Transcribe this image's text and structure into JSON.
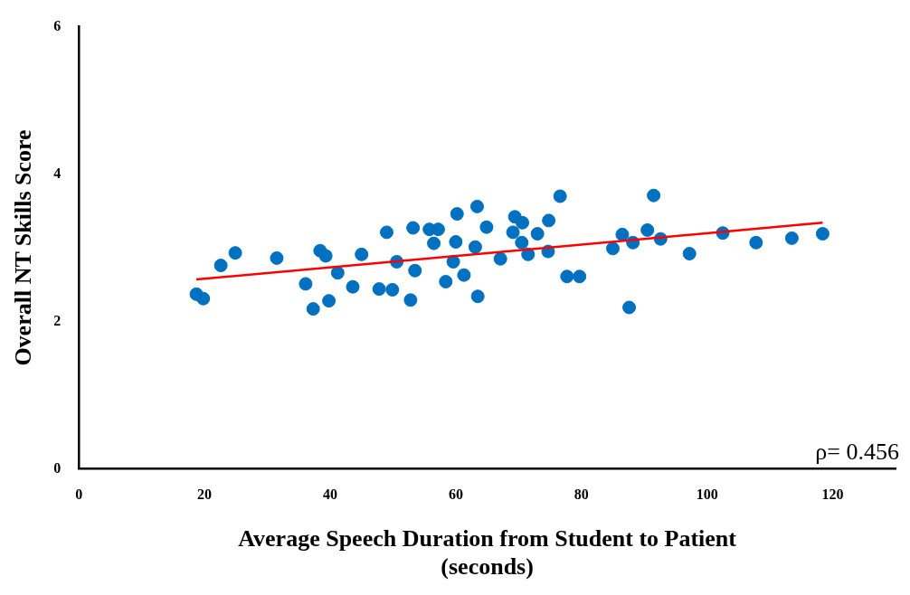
{
  "chart_data": {
    "type": "scatter",
    "xlabel": "Average Speech Duration from Student to Patient\n(seconds)",
    "ylabel": "Overall NT Skills Score",
    "xlim": [
      0,
      130
    ],
    "xticks": [
      0,
      20,
      40,
      60,
      80,
      100,
      120
    ],
    "ylim": [
      0,
      6
    ],
    "yticks": [
      0,
      2,
      4,
      6
    ],
    "grid": false,
    "legend": false,
    "annotations": [
      "ρ= 0.456"
    ],
    "series": [
      {
        "type": "scatter",
        "marker": "circle",
        "color": "#0070c0",
        "x": [
          18.7,
          19.8,
          22.6,
          24.9,
          31.5,
          36.1,
          37.3,
          38.4,
          39.3,
          39.8,
          41.2,
          43.6,
          45.0,
          47.8,
          49.0,
          49.9,
          50.6,
          52.8,
          53.2,
          53.5,
          55.8,
          56.5,
          57.2,
          58.4,
          59.6,
          60.0,
          60.2,
          61.3,
          63.1,
          63.4,
          63.5,
          64.9,
          67.1,
          69.1,
          69.4,
          70.6,
          70.5,
          71.5,
          73.0,
          74.7,
          74.8,
          76.6,
          77.7,
          79.7,
          85.0,
          86.5,
          87.6,
          88.2,
          90.5,
          91.5,
          92.6,
          97.2,
          102.5,
          107.8,
          113.5,
          118.4
        ],
        "values": [
          2.37,
          2.31,
          2.76,
          2.93,
          2.86,
          2.51,
          2.17,
          2.96,
          2.89,
          2.28,
          2.66,
          2.47,
          2.91,
          2.44,
          3.21,
          2.43,
          2.81,
          2.29,
          3.27,
          2.69,
          3.25,
          3.06,
          3.25,
          2.54,
          2.81,
          3.08,
          3.46,
          2.63,
          3.01,
          3.56,
          2.34,
          3.28,
          2.85,
          3.21,
          3.42,
          3.34,
          3.07,
          2.91,
          3.19,
          2.95,
          3.37,
          3.7,
          2.61,
          2.61,
          2.99,
          3.18,
          2.19,
          3.07,
          3.24,
          3.71,
          3.12,
          2.92,
          3.2,
          3.07,
          3.13,
          3.19
        ]
      },
      {
        "type": "line",
        "color": "#ff0000",
        "x": [
          18.7,
          118.4
        ],
        "values": [
          2.57,
          3.34
        ]
      }
    ]
  }
}
